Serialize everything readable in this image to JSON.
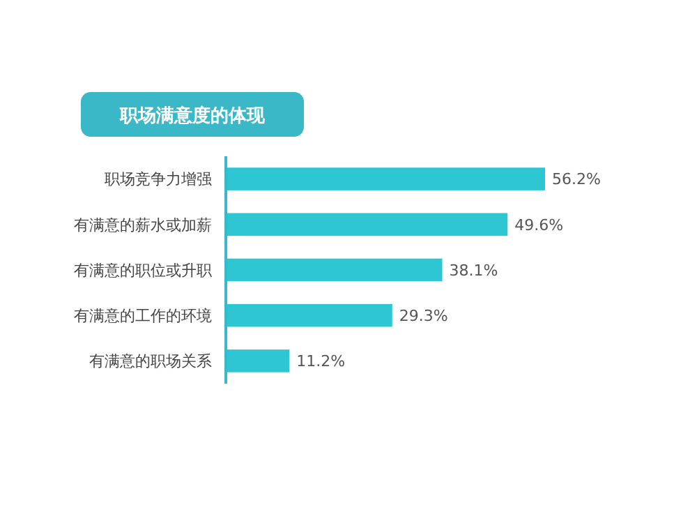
{
  "chart_data": {
    "type": "bar",
    "orientation": "horizontal",
    "title": "职场满意度的体现",
    "categories": [
      "职场竞争力增强",
      "有满意的薪水或加薪",
      "有满意的职位或升职",
      "有满意的工作的环境",
      "有满意的职场关系"
    ],
    "values": [
      56.2,
      49.6,
      38.1,
      29.3,
      11.2
    ],
    "value_labels": [
      "56.2%",
      "49.6%",
      "38.1%",
      "29.3%",
      "11.2%"
    ],
    "color": "#2fc6d3"
  }
}
